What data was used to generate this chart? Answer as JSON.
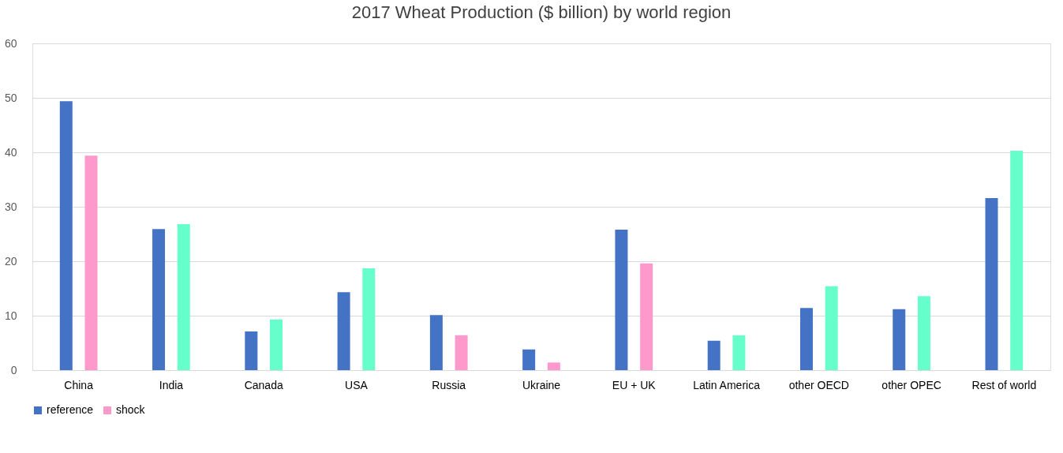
{
  "chart_data": {
    "type": "bar",
    "title": "2017 Wheat Production ($ billion) by world region",
    "categories": [
      "China",
      "India",
      "Canada",
      "USA",
      "Russia",
      "Ukraine",
      "EU + UK",
      "Latin America",
      "other OECD",
      "other OPEC",
      "Rest of world"
    ],
    "series": [
      {
        "name": "reference",
        "color": "#4472c4",
        "values": [
          49.4,
          25.9,
          7.1,
          14.3,
          10.1,
          3.8,
          25.8,
          5.4,
          11.4,
          11.2,
          31.6
        ]
      },
      {
        "name": "shock",
        "color": "#ff99cc",
        "colors": [
          "#ff99cc",
          "#66ffcc",
          "#66ffcc",
          "#66ffcc",
          "#ff99cc",
          "#ff99cc",
          "#ff99cc",
          "#66ffcc",
          "#66ffcc",
          "#66ffcc",
          "#66ffcc"
        ],
        "values": [
          39.4,
          26.8,
          9.3,
          18.7,
          6.4,
          1.4,
          19.6,
          6.4,
          15.4,
          13.6,
          40.3
        ]
      }
    ],
    "ylim": [
      0,
      60
    ],
    "yticks": [
      0,
      10,
      20,
      30,
      40,
      50,
      60
    ],
    "grid": "y",
    "legend": "bottom"
  }
}
